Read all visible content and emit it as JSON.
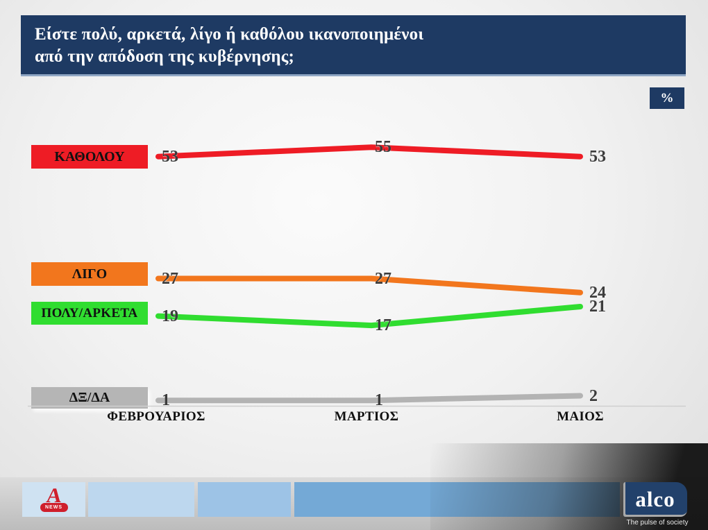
{
  "title": {
    "line1": "Είστε πολύ, αρκετά, λίγο ή καθόλου ικανοποιημένοι",
    "line2": "από την απόδοση της κυβέρνησης;"
  },
  "unit_badge": "%",
  "chart_data": {
    "type": "line",
    "categories": [
      "ΦΕΒΡΟΥΑΡΙΟΣ",
      "ΜΑΡΤΙΟΣ",
      "ΜΑΙΟΣ"
    ],
    "series": [
      {
        "name": "ΚΑΘΟΛΟΥ",
        "color": "#ee1c25",
        "values": [
          53,
          55,
          53
        ]
      },
      {
        "name": "ΛΙΓΟ",
        "color": "#f2761d",
        "values": [
          27,
          27,
          24
        ]
      },
      {
        "name": "ΠΟΛΥ/ΑΡΚΕΤΑ",
        "color": "#30dd30",
        "values": [
          19,
          17,
          21
        ]
      },
      {
        "name": "ΔΞ/ΔΑ",
        "color": "#b3b3b3",
        "values": [
          1,
          1,
          2
        ]
      }
    ],
    "ylim": [
      0,
      60
    ],
    "grid": false,
    "legend_position": "left",
    "value_labels_shown": true
  },
  "footer": {
    "alpha": {
      "letter": "A",
      "badge": "NEWS"
    },
    "alco": {
      "name": "alco",
      "tagline": "The pulse of society"
    }
  }
}
